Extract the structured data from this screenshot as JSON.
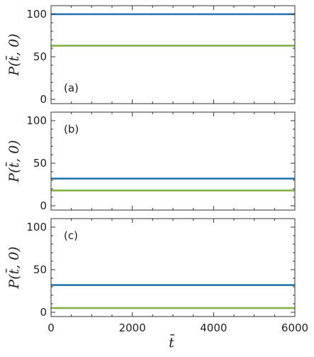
{
  "chart_data": [
    {
      "type": "line",
      "panel_label": "(a)",
      "ylabel": "P(t̄, 0)",
      "xlabel": "",
      "xlim": [
        0,
        6000
      ],
      "ylim": [
        -5,
        110
      ],
      "yticks": [
        0,
        50,
        100
      ],
      "xticks": [
        0,
        2000,
        4000,
        6000
      ],
      "x_tick_labels_shown": false,
      "grid": false,
      "series": [
        {
          "color": "#1f6fa8",
          "x": [
            0,
            6000
          ],
          "y": [
            100,
            100
          ]
        },
        {
          "color": "#7fae3e",
          "x": [
            0,
            6000
          ],
          "y": [
            63,
            63
          ]
        }
      ]
    },
    {
      "type": "line",
      "panel_label": "(b)",
      "ylabel": "P(t̄, 0)",
      "xlabel": "",
      "xlim": [
        0,
        6000
      ],
      "ylim": [
        -5,
        110
      ],
      "yticks": [
        0,
        50,
        100
      ],
      "xticks": [
        0,
        2000,
        4000,
        6000
      ],
      "x_tick_labels_shown": false,
      "grid": false,
      "series": [
        {
          "color": "#1f6fa8",
          "x": [
            0,
            6000
          ],
          "y": [
            32,
            32
          ]
        },
        {
          "color": "#7fae3e",
          "x": [
            0,
            6000
          ],
          "y": [
            18,
            18
          ]
        }
      ]
    },
    {
      "type": "line",
      "panel_label": "(c)",
      "ylabel": "P(t̄, 0)",
      "xlabel": "t̄",
      "xlim": [
        0,
        6000
      ],
      "ylim": [
        -5,
        110
      ],
      "yticks": [
        0,
        50,
        100
      ],
      "xticks": [
        0,
        2000,
        4000,
        6000
      ],
      "x_tick_labels_shown": true,
      "grid": false,
      "series": [
        {
          "color": "#1f6fa8",
          "x": [
            0,
            6000
          ],
          "y": [
            32,
            32
          ]
        },
        {
          "color": "#7fae3e",
          "x": [
            0,
            6000
          ],
          "y": [
            5,
            5
          ]
        }
      ]
    }
  ]
}
